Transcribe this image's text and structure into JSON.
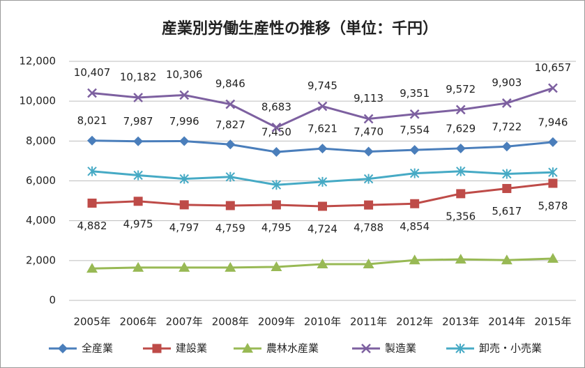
{
  "chart_data": {
    "type": "line",
    "title": "産業別労働生産性の推移（単位：千円）",
    "categories": [
      "2005年",
      "2006年",
      "2007年",
      "2008年",
      "2009年",
      "2010年",
      "2011年",
      "2012年",
      "2013年",
      "2014年",
      "2015年"
    ],
    "ylim": [
      0,
      12000
    ],
    "yticks": [
      0,
      {
        "value": 2000,
        "label": "2,000"
      },
      {
        "value": 4000,
        "label": "4,000"
      },
      {
        "value": 6000,
        "label": "6,000"
      },
      {
        "value": 8000,
        "label": "8,000"
      },
      {
        "value": 10000,
        "label": "10,000"
      },
      {
        "value": 12000,
        "label": "12,000"
      }
    ],
    "grid": true,
    "legend": "bottom",
    "series": [
      {
        "name": "全産業",
        "color": "#4a7ebb",
        "marker": "diamond",
        "values": [
          8021,
          7987,
          7996,
          7827,
          7450,
          7621,
          7470,
          7554,
          7629,
          7722,
          7946
        ],
        "value_labels": [
          "8,021",
          "7,987",
          "7,996",
          "7,827",
          "7,450",
          "7,621",
          "7,470",
          "7,554",
          "7,629",
          "7,722",
          "7,946"
        ]
      },
      {
        "name": "建設業",
        "color": "#be4b48",
        "marker": "square",
        "values": [
          4882,
          4975,
          4797,
          4759,
          4795,
          4724,
          4788,
          4854,
          5356,
          5617,
          5878
        ],
        "value_labels": [
          "4,882",
          "4,975",
          "4,797",
          "4,759",
          "4,795",
          "4,724",
          "4,788",
          "4,854",
          "5,356",
          "5,617",
          "5,878"
        ]
      },
      {
        "name": "農林水産業",
        "color": "#98b954",
        "marker": "triangle",
        "values": [
          1600,
          1650,
          1650,
          1650,
          1680,
          1820,
          1820,
          2020,
          2060,
          2020,
          2100
        ]
      },
      {
        "name": "製造業",
        "color": "#7d60a0",
        "marker": "x",
        "values": [
          10407,
          10182,
          10306,
          9846,
          8683,
          9745,
          9113,
          9351,
          9572,
          9903,
          10657
        ],
        "value_labels": [
          "10,407",
          "10,182",
          "10,306",
          "9,846",
          "8,683",
          "9,745",
          "9,113",
          "9,351",
          "9,572",
          "9,903",
          "10,657"
        ]
      },
      {
        "name": "卸売・小売業",
        "color": "#46aac5",
        "marker": "star",
        "values": [
          6480,
          6280,
          6100,
          6200,
          5800,
          5950,
          6100,
          6380,
          6480,
          6350,
          6430
        ]
      }
    ]
  }
}
